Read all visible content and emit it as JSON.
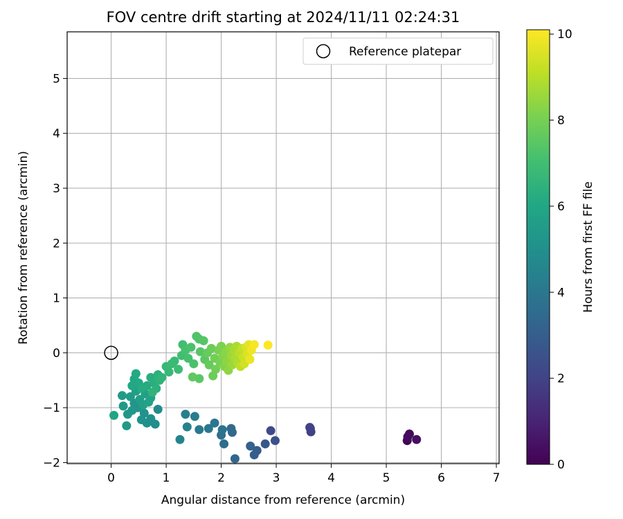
{
  "chart_data": {
    "type": "scatter",
    "title": "FOV centre drift starting at 2024/11/11 02:24:31",
    "xlabel": "Angular distance from reference (arcmin)",
    "ylabel": "Rotation from reference (arcmin)",
    "xlim": [
      -0.8,
      7.05
    ],
    "ylim": [
      -2.02,
      5.85
    ],
    "xticks": [
      "0",
      "1",
      "2",
      "3",
      "4",
      "5",
      "6",
      "7"
    ],
    "yticks": [
      "−2",
      "−1",
      "0",
      "1",
      "2",
      "3",
      "4",
      "5"
    ],
    "grid": true,
    "legend": {
      "position": "top-right",
      "entries": [
        "Reference platepar"
      ]
    },
    "colorbar": {
      "label": "Hours from first FF file",
      "colormap": "viridis",
      "range": [
        0,
        10.1
      ],
      "ticks": [
        "0",
        "2",
        "4",
        "6",
        "8",
        "10"
      ]
    },
    "reference_point": {
      "x": 0,
      "y": 0
    },
    "series": [
      {
        "points": [
          {
            "x": 5.38,
            "y": -1.6,
            "t": 0.1
          },
          {
            "x": 5.42,
            "y": -1.48,
            "t": 0.2
          },
          {
            "x": 5.39,
            "y": -1.53,
            "t": 0.3
          },
          {
            "x": 5.55,
            "y": -1.58,
            "t": 0.4
          },
          {
            "x": 3.62,
            "y": -1.38,
            "t": 1.8
          },
          {
            "x": 3.63,
            "y": -1.44,
            "t": 1.9
          },
          {
            "x": 3.61,
            "y": -1.36,
            "t": 2.0
          },
          {
            "x": 2.9,
            "y": -1.42,
            "t": 2.3
          },
          {
            "x": 2.98,
            "y": -1.6,
            "t": 2.5
          },
          {
            "x": 2.8,
            "y": -1.66,
            "t": 2.7
          },
          {
            "x": 2.65,
            "y": -1.78,
            "t": 2.9
          },
          {
            "x": 2.6,
            "y": -1.86,
            "t": 3.0
          },
          {
            "x": 2.53,
            "y": -1.7,
            "t": 3.1
          },
          {
            "x": 2.25,
            "y": -1.93,
            "t": 3.3
          },
          {
            "x": 2.2,
            "y": -1.45,
            "t": 3.4
          },
          {
            "x": 2.18,
            "y": -1.38,
            "t": 3.5
          },
          {
            "x": 2.05,
            "y": -1.66,
            "t": 3.6
          },
          {
            "x": 2.0,
            "y": -1.5,
            "t": 3.7
          },
          {
            "x": 2.02,
            "y": -1.4,
            "t": 3.8
          },
          {
            "x": 1.88,
            "y": -1.28,
            "t": 3.9
          },
          {
            "x": 1.77,
            "y": -1.38,
            "t": 4.0
          },
          {
            "x": 1.6,
            "y": -1.4,
            "t": 4.1
          },
          {
            "x": 1.52,
            "y": -1.16,
            "t": 4.2
          },
          {
            "x": 1.35,
            "y": -1.12,
            "t": 4.3
          },
          {
            "x": 1.38,
            "y": -1.35,
            "t": 4.4
          },
          {
            "x": 1.25,
            "y": -1.58,
            "t": 4.5
          },
          {
            "x": 0.85,
            "y": -1.03,
            "t": 4.8
          },
          {
            "x": 0.8,
            "y": -1.3,
            "t": 4.9
          },
          {
            "x": 0.72,
            "y": -1.2,
            "t": 5.0
          },
          {
            "x": 0.65,
            "y": -1.28,
            "t": 5.0
          },
          {
            "x": 0.6,
            "y": -1.1,
            "t": 5.1
          },
          {
            "x": 0.55,
            "y": -1.22,
            "t": 5.1
          },
          {
            "x": 0.48,
            "y": -1.0,
            "t": 5.2
          },
          {
            "x": 0.42,
            "y": -0.92,
            "t": 5.2
          },
          {
            "x": 0.38,
            "y": -1.05,
            "t": 5.3
          },
          {
            "x": 0.3,
            "y": -1.12,
            "t": 5.3
          },
          {
            "x": 0.28,
            "y": -1.33,
            "t": 5.4
          },
          {
            "x": 0.22,
            "y": -0.97,
            "t": 5.4
          },
          {
            "x": 0.2,
            "y": -0.78,
            "t": 5.5
          },
          {
            "x": 0.35,
            "y": -0.8,
            "t": 5.5
          },
          {
            "x": 0.45,
            "y": -0.7,
            "t": 5.6
          },
          {
            "x": 0.52,
            "y": -0.85,
            "t": 5.6
          },
          {
            "x": 0.58,
            "y": -0.95,
            "t": 5.7
          },
          {
            "x": 0.62,
            "y": -0.75,
            "t": 5.7
          },
          {
            "x": 0.68,
            "y": -0.9,
            "t": 5.8
          },
          {
            "x": 0.72,
            "y": -0.82,
            "t": 5.8
          },
          {
            "x": 0.05,
            "y": -1.14,
            "t": 5.9
          },
          {
            "x": 0.38,
            "y": -0.6,
            "t": 6.0
          },
          {
            "x": 0.42,
            "y": -0.48,
            "t": 6.0
          },
          {
            "x": 0.45,
            "y": -0.38,
            "t": 6.1
          },
          {
            "x": 0.5,
            "y": -0.55,
            "t": 6.1
          },
          {
            "x": 0.55,
            "y": -0.65,
            "t": 6.2
          },
          {
            "x": 0.65,
            "y": -0.6,
            "t": 6.2
          },
          {
            "x": 0.72,
            "y": -0.45,
            "t": 6.3
          },
          {
            "x": 0.78,
            "y": -0.55,
            "t": 6.3
          },
          {
            "x": 0.82,
            "y": -0.65,
            "t": 6.4
          },
          {
            "x": 0.85,
            "y": -0.4,
            "t": 6.4
          },
          {
            "x": 0.88,
            "y": -0.5,
            "t": 6.5
          },
          {
            "x": 0.75,
            "y": -0.72,
            "t": 6.5
          },
          {
            "x": 0.92,
            "y": -0.45,
            "t": 6.6
          },
          {
            "x": 1.0,
            "y": -0.25,
            "t": 6.7
          },
          {
            "x": 1.05,
            "y": -0.35,
            "t": 6.7
          },
          {
            "x": 1.1,
            "y": -0.2,
            "t": 6.8
          },
          {
            "x": 1.15,
            "y": -0.15,
            "t": 6.8
          },
          {
            "x": 1.22,
            "y": -0.3,
            "t": 6.9
          },
          {
            "x": 1.28,
            "y": -0.05,
            "t": 7.0
          },
          {
            "x": 1.3,
            "y": 0.15,
            "t": 7.0
          },
          {
            "x": 1.35,
            "y": 0.05,
            "t": 7.1
          },
          {
            "x": 1.4,
            "y": -0.1,
            "t": 7.1
          },
          {
            "x": 1.45,
            "y": 0.1,
            "t": 7.2
          },
          {
            "x": 1.5,
            "y": -0.2,
            "t": 7.2
          },
          {
            "x": 1.55,
            "y": 0.3,
            "t": 7.3
          },
          {
            "x": 1.6,
            "y": 0.25,
            "t": 7.3
          },
          {
            "x": 1.62,
            "y": 0.02,
            "t": 7.4
          },
          {
            "x": 1.68,
            "y": 0.22,
            "t": 7.4
          },
          {
            "x": 1.7,
            "y": -0.12,
            "t": 7.5
          },
          {
            "x": 1.6,
            "y": -0.47,
            "t": 7.5
          },
          {
            "x": 1.48,
            "y": -0.44,
            "t": 7.6
          },
          {
            "x": 1.75,
            "y": 0.0,
            "t": 7.7
          },
          {
            "x": 1.78,
            "y": -0.22,
            "t": 7.7
          },
          {
            "x": 1.82,
            "y": 0.08,
            "t": 7.8
          },
          {
            "x": 1.85,
            "y": -0.42,
            "t": 7.8
          },
          {
            "x": 1.88,
            "y": -0.1,
            "t": 7.9
          },
          {
            "x": 1.9,
            "y": -0.3,
            "t": 7.9
          },
          {
            "x": 1.95,
            "y": 0.05,
            "t": 8.0
          },
          {
            "x": 1.98,
            "y": -0.18,
            "t": 8.0
          },
          {
            "x": 2.0,
            "y": 0.12,
            "t": 8.1
          },
          {
            "x": 2.03,
            "y": -0.05,
            "t": 8.2
          },
          {
            "x": 2.06,
            "y": -0.25,
            "t": 8.2
          },
          {
            "x": 2.08,
            "y": 0.02,
            "t": 8.3
          },
          {
            "x": 2.1,
            "y": -0.15,
            "t": 8.4
          },
          {
            "x": 2.13,
            "y": -0.32,
            "t": 8.4
          },
          {
            "x": 2.16,
            "y": 0.1,
            "t": 8.5
          },
          {
            "x": 2.18,
            "y": -0.05,
            "t": 8.6
          },
          {
            "x": 2.2,
            "y": -0.22,
            "t": 8.6
          },
          {
            "x": 2.23,
            "y": 0.05,
            "t": 8.7
          },
          {
            "x": 2.25,
            "y": -0.1,
            "t": 8.8
          },
          {
            "x": 2.28,
            "y": 0.12,
            "t": 8.8
          },
          {
            "x": 2.3,
            "y": -0.18,
            "t": 8.9
          },
          {
            "x": 2.32,
            "y": 0.0,
            "t": 9.0
          },
          {
            "x": 2.35,
            "y": -0.25,
            "t": 9.1
          },
          {
            "x": 2.38,
            "y": 0.08,
            "t": 9.2
          },
          {
            "x": 2.4,
            "y": -0.08,
            "t": 9.3
          },
          {
            "x": 2.42,
            "y": -0.2,
            "t": 9.4
          },
          {
            "x": 2.45,
            "y": 0.1,
            "t": 9.5
          },
          {
            "x": 2.48,
            "y": -0.02,
            "t": 9.6
          },
          {
            "x": 2.5,
            "y": 0.15,
            "t": 9.7
          },
          {
            "x": 2.52,
            "y": -0.12,
            "t": 9.8
          },
          {
            "x": 2.55,
            "y": 0.05,
            "t": 9.9
          },
          {
            "x": 2.6,
            "y": 0.15,
            "t": 10.0
          },
          {
            "x": 2.85,
            "y": 0.14,
            "t": 10.1
          }
        ]
      }
    ]
  }
}
